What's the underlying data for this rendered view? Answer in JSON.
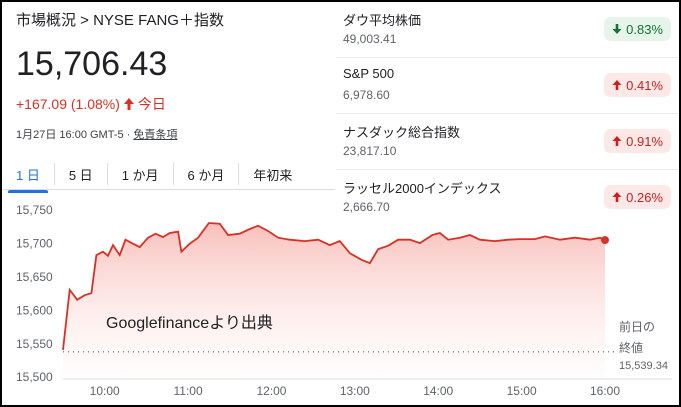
{
  "header": {
    "breadcrumb": "市場概況 > NYSE FANG＋指数"
  },
  "quote": {
    "price": "15,706.43",
    "change": "+167.09 (1.08%)",
    "direction": "up",
    "period": "今日",
    "timestamp": "1月27日 16:00 GMT-5 ·",
    "disclaimer": "免責条項"
  },
  "tabs": [
    "1 日",
    "5 日",
    "1 か月",
    "6 か月",
    "年初来"
  ],
  "indices": [
    {
      "name": "ダウ平均株価",
      "value": "49,003.41",
      "change": "0.83%",
      "direction": "down"
    },
    {
      "name": "S&P 500",
      "value": "6,978.60",
      "change": "0.41%",
      "direction": "up"
    },
    {
      "name": "ナスダック総合指数",
      "value": "23,817.10",
      "change": "0.91%",
      "direction": "up"
    },
    {
      "name": "ラッセル2000インデックス",
      "value": "2,666.70",
      "change": "0.26%",
      "direction": "up"
    }
  ],
  "chart_data": {
    "type": "line",
    "color": "#d93025",
    "grid": false,
    "annotation": "Googlefinanceより出典",
    "x": [
      9.5,
      9.58,
      9.67,
      9.76,
      9.84,
      9.9,
      9.98,
      10.04,
      10.1,
      10.18,
      10.25,
      10.34,
      10.42,
      10.52,
      10.61,
      10.7,
      10.78,
      10.88,
      10.92,
      11.02,
      11.12,
      11.25,
      11.38,
      11.48,
      11.62,
      11.74,
      11.84,
      11.96,
      12.08,
      12.22,
      12.4,
      12.56,
      12.7,
      12.82,
      12.94,
      13.08,
      13.18,
      13.28,
      13.4,
      13.52,
      13.66,
      13.78,
      13.93,
      14.02,
      14.12,
      14.26,
      14.38,
      14.5,
      14.68,
      14.84,
      14.98,
      15.16,
      15.28,
      15.46,
      15.64,
      15.82,
      15.94,
      16
    ],
    "values": [
      15542,
      15632,
      15617,
      15624,
      15627,
      15684,
      15689,
      15683,
      15699,
      15684,
      15707,
      15701,
      15696,
      15710,
      15716,
      15711,
      15717,
      15719,
      15689,
      15701,
      15710,
      15732,
      15731,
      15714,
      15716,
      15723,
      15728,
      15720,
      15710,
      15707,
      15705,
      15707,
      15699,
      15705,
      15687,
      15677,
      15672,
      15693,
      15698,
      15707,
      15707,
      15702,
      15714,
      15717,
      15707,
      15710,
      15714,
      15707,
      15705,
      15707,
      15708,
      15708,
      15712,
      15707,
      15710,
      15707,
      15710,
      15706.43
    ],
    "xlim": [
      9.5,
      16
    ],
    "xticks": [
      {
        "value": 10,
        "label": "10:00"
      },
      {
        "value": 11,
        "label": "11:00"
      },
      {
        "value": 12,
        "label": "12:00"
      },
      {
        "value": 13,
        "label": "13:00"
      },
      {
        "value": 14,
        "label": "14:00"
      },
      {
        "value": 15,
        "label": "15:00"
      },
      {
        "value": 16,
        "label": "16:00"
      }
    ],
    "ylim": [
      15500,
      15750
    ],
    "yticks": [
      {
        "value": 15500,
        "label": "15,500"
      },
      {
        "value": 15550,
        "label": "15,550"
      },
      {
        "value": 15600,
        "label": "15,600"
      },
      {
        "value": 15650,
        "label": "15,650"
      },
      {
        "value": 15700,
        "label": "15,700"
      },
      {
        "value": 15750,
        "label": "15,750"
      }
    ],
    "reference_line": {
      "label": "前日の終値",
      "value": 15539.34,
      "value_label": "15,539.34"
    }
  }
}
